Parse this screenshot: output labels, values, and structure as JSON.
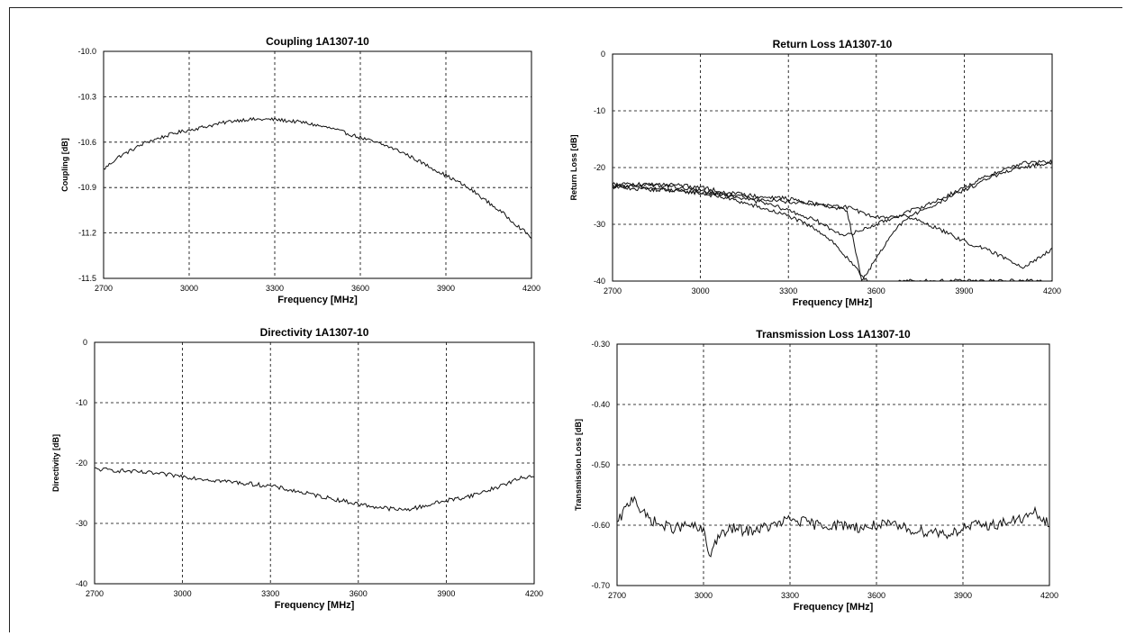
{
  "chart_data": [
    {
      "type": "line",
      "title": "Coupling 1A1307-10",
      "xlabel": "Frequency [MHz]",
      "ylabel": "Coupling [dB]",
      "xlim": [
        2700,
        4200
      ],
      "ylim": [
        -11.5,
        -10.0
      ],
      "xticks": [
        2700,
        3000,
        3300,
        3600,
        3900,
        4200
      ],
      "yticks": [
        -10.0,
        -10.3,
        -10.6,
        -10.9,
        -11.2,
        -11.5
      ],
      "xtick_labels": [
        "2700",
        "3000",
        "3300",
        "3600",
        "3900",
        "4200"
      ],
      "ytick_labels": [
        "-10.0",
        "-10.3",
        "-10.6",
        "-10.9",
        "-11.2",
        "-11.5"
      ],
      "grid": true,
      "noise": 0.012,
      "series": [
        {
          "x": [
            2700,
            2750,
            2800,
            2850,
            2900,
            2950,
            3000,
            3050,
            3100,
            3150,
            3200,
            3250,
            3300,
            3350,
            3400,
            3450,
            3500,
            3550,
            3600,
            3650,
            3700,
            3750,
            3800,
            3850,
            3900,
            3950,
            4000,
            4050,
            4100,
            4150,
            4200
          ],
          "y": [
            -10.78,
            -10.7,
            -10.65,
            -10.6,
            -10.57,
            -10.54,
            -10.52,
            -10.5,
            -10.48,
            -10.46,
            -10.45,
            -10.45,
            -10.45,
            -10.46,
            -10.47,
            -10.49,
            -10.51,
            -10.54,
            -10.57,
            -10.6,
            -10.63,
            -10.67,
            -10.72,
            -10.77,
            -10.82,
            -10.87,
            -10.93,
            -11.0,
            -11.07,
            -11.15,
            -11.23
          ]
        }
      ]
    },
    {
      "type": "line",
      "title": "Return Loss 1A1307-10",
      "xlabel": "Frequency [MHz]",
      "ylabel": "Return Loss [dB]",
      "xlim": [
        2700,
        4200
      ],
      "ylim": [
        -40,
        0
      ],
      "xticks": [
        2700,
        3000,
        3300,
        3600,
        3900,
        4200
      ],
      "yticks": [
        0,
        -10,
        -20,
        -30,
        -40
      ],
      "xtick_labels": [
        "2700",
        "3000",
        "3300",
        "3600",
        "3900",
        "4200"
      ],
      "ytick_labels": [
        "0",
        "-10",
        "-20",
        "-30",
        "-40"
      ],
      "grid": true,
      "noise": 0.35,
      "series": [
        {
          "x": [
            2700,
            2800,
            2900,
            3000,
            3100,
            3200,
            3300,
            3400,
            3450,
            3500,
            3550,
            3600,
            3700,
            3800,
            3900,
            4000,
            4100,
            4200
          ],
          "y": [
            -23,
            -23.5,
            -24,
            -24.5,
            -25.5,
            -27,
            -28.5,
            -31,
            -33,
            -36,
            -39,
            -41,
            -40,
            -40,
            -40,
            -40,
            -40,
            -40
          ]
        },
        {
          "x": [
            2700,
            2800,
            2900,
            3000,
            3100,
            3200,
            3300,
            3400,
            3450,
            3500,
            3600,
            3700,
            3800,
            3900,
            4000,
            4100,
            4200
          ],
          "y": [
            -23.5,
            -23.8,
            -24,
            -24.4,
            -25,
            -26,
            -27.5,
            -29.5,
            -31,
            -32,
            -30,
            -28,
            -26,
            -23.5,
            -21,
            -19.2,
            -19
          ]
        },
        {
          "x": [
            2700,
            2800,
            2900,
            3000,
            3100,
            3200,
            3300,
            3400,
            3500,
            3600,
            3700,
            3800,
            3900,
            4000,
            4100,
            4150,
            4200
          ],
          "y": [
            -23,
            -23,
            -23.3,
            -24,
            -24.8,
            -25.5,
            -26,
            -26.5,
            -27,
            -28.8,
            -28.5,
            -30.5,
            -33,
            -35,
            -37.5,
            -36,
            -34.5
          ]
        },
        {
          "x": [
            2700,
            2800,
            2900,
            3000,
            3100,
            3200,
            3300,
            3400,
            3500,
            3550,
            3600,
            3650,
            3700,
            3800,
            3900,
            4000,
            4100,
            4200
          ],
          "y": [
            -23.5,
            -23,
            -23,
            -23.5,
            -24.5,
            -25,
            -25.5,
            -26.5,
            -27.5,
            -40,
            -36,
            -32,
            -29,
            -26.5,
            -24,
            -21.5,
            -20,
            -19
          ]
        }
      ]
    },
    {
      "type": "line",
      "title": "Directivity 1A1307-10",
      "xlabel": "Frequency [MHz]",
      "ylabel": "Directivity [dB]",
      "xlim": [
        2700,
        4200
      ],
      "ylim": [
        -40,
        0
      ],
      "xticks": [
        2700,
        3000,
        3300,
        3600,
        3900,
        4200
      ],
      "yticks": [
        0,
        -10,
        -20,
        -30,
        -40
      ],
      "xtick_labels": [
        "2700",
        "3000",
        "3300",
        "3600",
        "3900",
        "4200"
      ],
      "ytick_labels": [
        "0",
        "-10",
        "-20",
        "-30",
        "-40"
      ],
      "grid": true,
      "noise": 0.35,
      "series": [
        {
          "x": [
            2700,
            2800,
            2900,
            3000,
            3100,
            3200,
            3300,
            3400,
            3500,
            3600,
            3650,
            3700,
            3750,
            3800,
            3850,
            3900,
            3950,
            4000,
            4050,
            4100,
            4150,
            4200
          ],
          "y": [
            -21,
            -21.3,
            -21.7,
            -22.2,
            -22.8,
            -23.3,
            -23.8,
            -24.8,
            -25.8,
            -26.8,
            -27.2,
            -27.5,
            -27.8,
            -27.4,
            -26.8,
            -26.2,
            -25.8,
            -25.2,
            -24.4,
            -23.5,
            -22.6,
            -22
          ]
        }
      ]
    },
    {
      "type": "line",
      "title": "Transmission Loss 1A1307-10",
      "xlabel": "Frequency [MHz]",
      "ylabel": "Transmission Loss [dB]",
      "xlim": [
        2700,
        4200
      ],
      "ylim": [
        -0.7,
        -0.3
      ],
      "xticks": [
        2700,
        3000,
        3300,
        3600,
        3900,
        4200
      ],
      "yticks": [
        -0.3,
        -0.4,
        -0.5,
        -0.6,
        -0.7
      ],
      "xtick_labels": [
        "2700",
        "3000",
        "3300",
        "3600",
        "3900",
        "4200"
      ],
      "ytick_labels": [
        "-0.30",
        "-0.40",
        "-0.50",
        "-0.60",
        "-0.70"
      ],
      "grid": true,
      "noise": 0.009,
      "series": [
        {
          "x": [
            2700,
            2720,
            2740,
            2760,
            2780,
            2800,
            2850,
            2900,
            2950,
            3000,
            3020,
            3050,
            3100,
            3150,
            3200,
            3250,
            3300,
            3350,
            3400,
            3450,
            3500,
            3550,
            3600,
            3650,
            3700,
            3750,
            3800,
            3850,
            3900,
            3950,
            4000,
            4050,
            4100,
            4150,
            4200
          ],
          "y": [
            -0.6,
            -0.58,
            -0.565,
            -0.55,
            -0.575,
            -0.585,
            -0.6,
            -0.605,
            -0.6,
            -0.61,
            -0.65,
            -0.62,
            -0.605,
            -0.61,
            -0.605,
            -0.6,
            -0.59,
            -0.595,
            -0.6,
            -0.6,
            -0.6,
            -0.605,
            -0.6,
            -0.6,
            -0.605,
            -0.61,
            -0.61,
            -0.615,
            -0.605,
            -0.6,
            -0.6,
            -0.595,
            -0.59,
            -0.58,
            -0.6
          ]
        }
      ]
    }
  ]
}
